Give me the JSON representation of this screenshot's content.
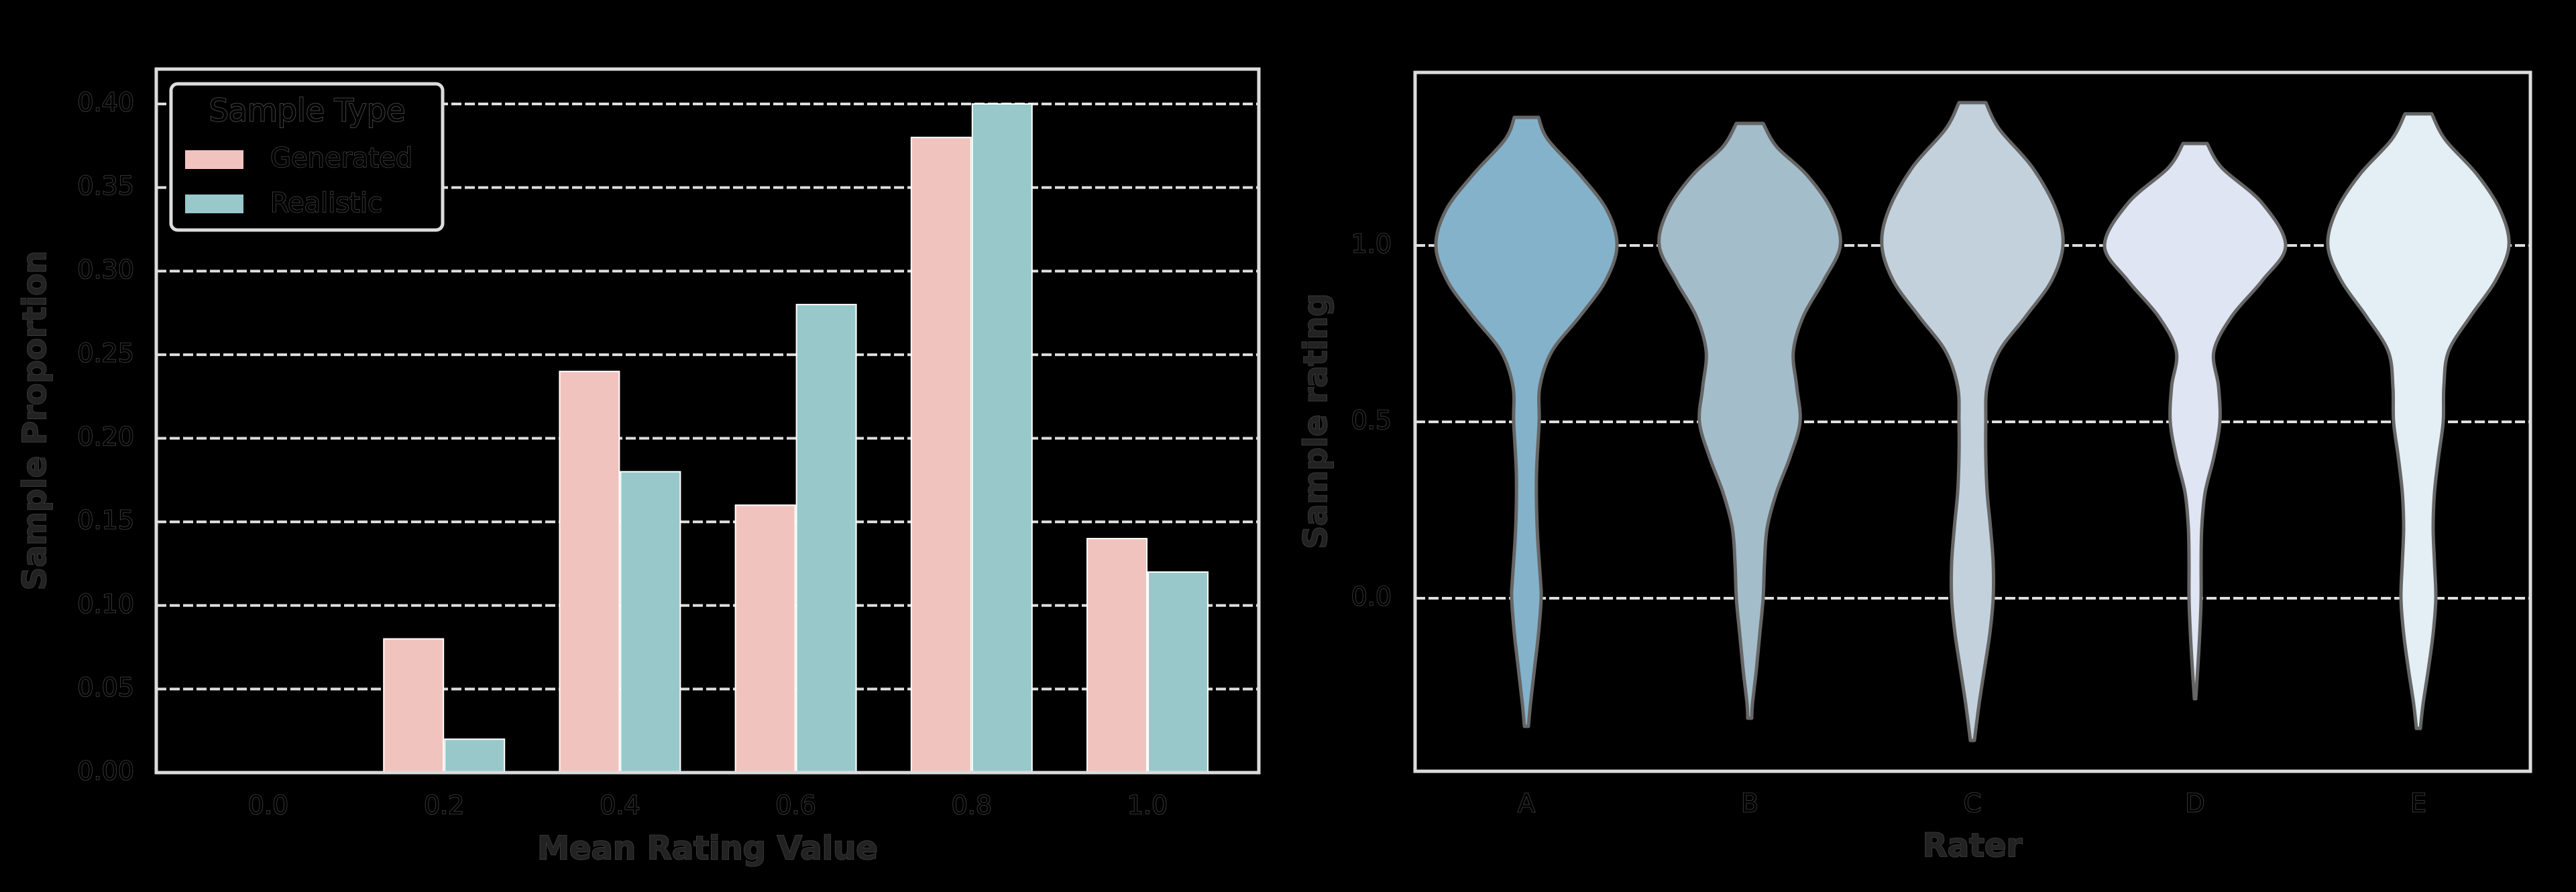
{
  "chart_data": [
    {
      "type": "bar",
      "title": "",
      "xlabel": "Mean Rating Value",
      "ylabel": "Sample Proportion",
      "categories": [
        "0.0",
        "0.2",
        "0.4",
        "0.6",
        "0.8",
        "1.0"
      ],
      "series": [
        {
          "name": "Generated",
          "color": "#F1C3BF",
          "values": [
            0.0,
            0.08,
            0.24,
            0.16,
            0.38,
            0.14
          ]
        },
        {
          "name": "Realistic",
          "color": "#98C8CA",
          "values": [
            0.0,
            0.02,
            0.18,
            0.28,
            0.4,
            0.12
          ]
        }
      ],
      "yticks": [
        "0.00",
        "0.05",
        "0.10",
        "0.15",
        "0.20",
        "0.25",
        "0.30",
        "0.35",
        "0.40"
      ],
      "ylim": [
        0,
        0.42
      ],
      "grid": true,
      "grid_style": "dashed horizontal",
      "legend": {
        "title": "Sample Type",
        "position": "upper left",
        "entries": [
          "Generated",
          "Realistic"
        ]
      }
    },
    {
      "type": "violin",
      "title": "",
      "xlabel": "Rater",
      "ylabel": "Sample rating",
      "categories": [
        "A",
        "B",
        "C",
        "D",
        "E"
      ],
      "yticks": [
        "0.0",
        "0.5",
        "1.0"
      ],
      "ylim": [
        -0.49,
        1.49
      ],
      "grid": true,
      "grid_style": "dashed horizontal",
      "violins": [
        {
          "name": "A",
          "color": "#84B2CA",
          "min": -0.363,
          "max": 1.363,
          "mode": 1.0,
          "profile": [
            [
              1.363,
              18
            ],
            [
              1.3,
              32
            ],
            [
              1.2,
              80
            ],
            [
              1.1,
              120
            ],
            [
              1.0,
              135
            ],
            [
              0.9,
              118
            ],
            [
              0.8,
              80
            ],
            [
              0.7,
              38
            ],
            [
              0.6,
              20
            ],
            [
              0.5,
              19
            ],
            [
              0.35,
              15
            ],
            [
              0.2,
              16
            ],
            [
              0.05,
              21
            ],
            [
              0.0,
              22
            ],
            [
              -0.1,
              18
            ],
            [
              -0.2,
              12
            ],
            [
              -0.3,
              6
            ],
            [
              -0.363,
              3
            ]
          ]
        },
        {
          "name": "B",
          "color": "#A4BDCB",
          "min": -0.34,
          "max": 1.346,
          "mode": 1.0,
          "profile": [
            [
              1.346,
              20
            ],
            [
              1.28,
              40
            ],
            [
              1.2,
              85
            ],
            [
              1.1,
              122
            ],
            [
              1.0,
              135
            ],
            [
              0.9,
              110
            ],
            [
              0.8,
              80
            ],
            [
              0.7,
              65
            ],
            [
              0.6,
              70
            ],
            [
              0.5,
              75
            ],
            [
              0.4,
              60
            ],
            [
              0.3,
              40
            ],
            [
              0.2,
              26
            ],
            [
              0.1,
              22
            ],
            [
              0.0,
              20
            ],
            [
              -0.1,
              15
            ],
            [
              -0.2,
              10
            ],
            [
              -0.3,
              4
            ],
            [
              -0.34,
              3
            ]
          ]
        },
        {
          "name": "C",
          "color": "#C3D1DC",
          "min": -0.403,
          "max": 1.405,
          "mode": 1.0,
          "profile": [
            [
              1.405,
              20
            ],
            [
              1.33,
              40
            ],
            [
              1.22,
              90
            ],
            [
              1.1,
              125
            ],
            [
              1.0,
              135
            ],
            [
              0.9,
              118
            ],
            [
              0.8,
              80
            ],
            [
              0.7,
              40
            ],
            [
              0.6,
              22
            ],
            [
              0.5,
              20
            ],
            [
              0.4,
              20
            ],
            [
              0.3,
              22
            ],
            [
              0.2,
              27
            ],
            [
              0.1,
              31
            ],
            [
              0.0,
              31
            ],
            [
              -0.1,
              26
            ],
            [
              -0.2,
              18
            ],
            [
              -0.3,
              10
            ],
            [
              -0.403,
              3
            ]
          ]
        },
        {
          "name": "D",
          "color": "#DFE5F2",
          "min": -0.285,
          "max": 1.289,
          "mode": 1.0,
          "profile": [
            [
              1.289,
              18
            ],
            [
              1.22,
              40
            ],
            [
              1.12,
              100
            ],
            [
              1.0,
              135
            ],
            [
              0.9,
              100
            ],
            [
              0.8,
              55
            ],
            [
              0.7,
              28
            ],
            [
              0.6,
              35
            ],
            [
              0.5,
              37
            ],
            [
              0.4,
              28
            ],
            [
              0.3,
              15
            ],
            [
              0.2,
              10
            ],
            [
              0.1,
              9
            ],
            [
              0.0,
              9
            ],
            [
              -0.1,
              7
            ],
            [
              -0.2,
              4
            ],
            [
              -0.285,
              1
            ]
          ]
        },
        {
          "name": "E",
          "color": "#E3EFF5",
          "min": -0.369,
          "max": 1.373,
          "mode": 1.0,
          "profile": [
            [
              1.373,
              20
            ],
            [
              1.3,
              40
            ],
            [
              1.2,
              88
            ],
            [
              1.1,
              122
            ],
            [
              1.0,
              135
            ],
            [
              0.9,
              115
            ],
            [
              0.8,
              78
            ],
            [
              0.7,
              45
            ],
            [
              0.6,
              38
            ],
            [
              0.5,
              37
            ],
            [
              0.4,
              30
            ],
            [
              0.3,
              24
            ],
            [
              0.2,
              22
            ],
            [
              0.1,
              24
            ],
            [
              0.0,
              26
            ],
            [
              -0.1,
              22
            ],
            [
              -0.2,
              15
            ],
            [
              -0.3,
              7
            ],
            [
              -0.369,
              3
            ]
          ]
        }
      ]
    }
  ],
  "left_chart": {
    "ylabel": "Sample Proportion",
    "xlabel": "Mean Rating Value",
    "legend_title": "Sample Type",
    "legend_entries": [
      "Generated",
      "Realistic"
    ]
  },
  "right_chart": {
    "ylabel": "Sample rating",
    "xlabel": "Rater"
  }
}
